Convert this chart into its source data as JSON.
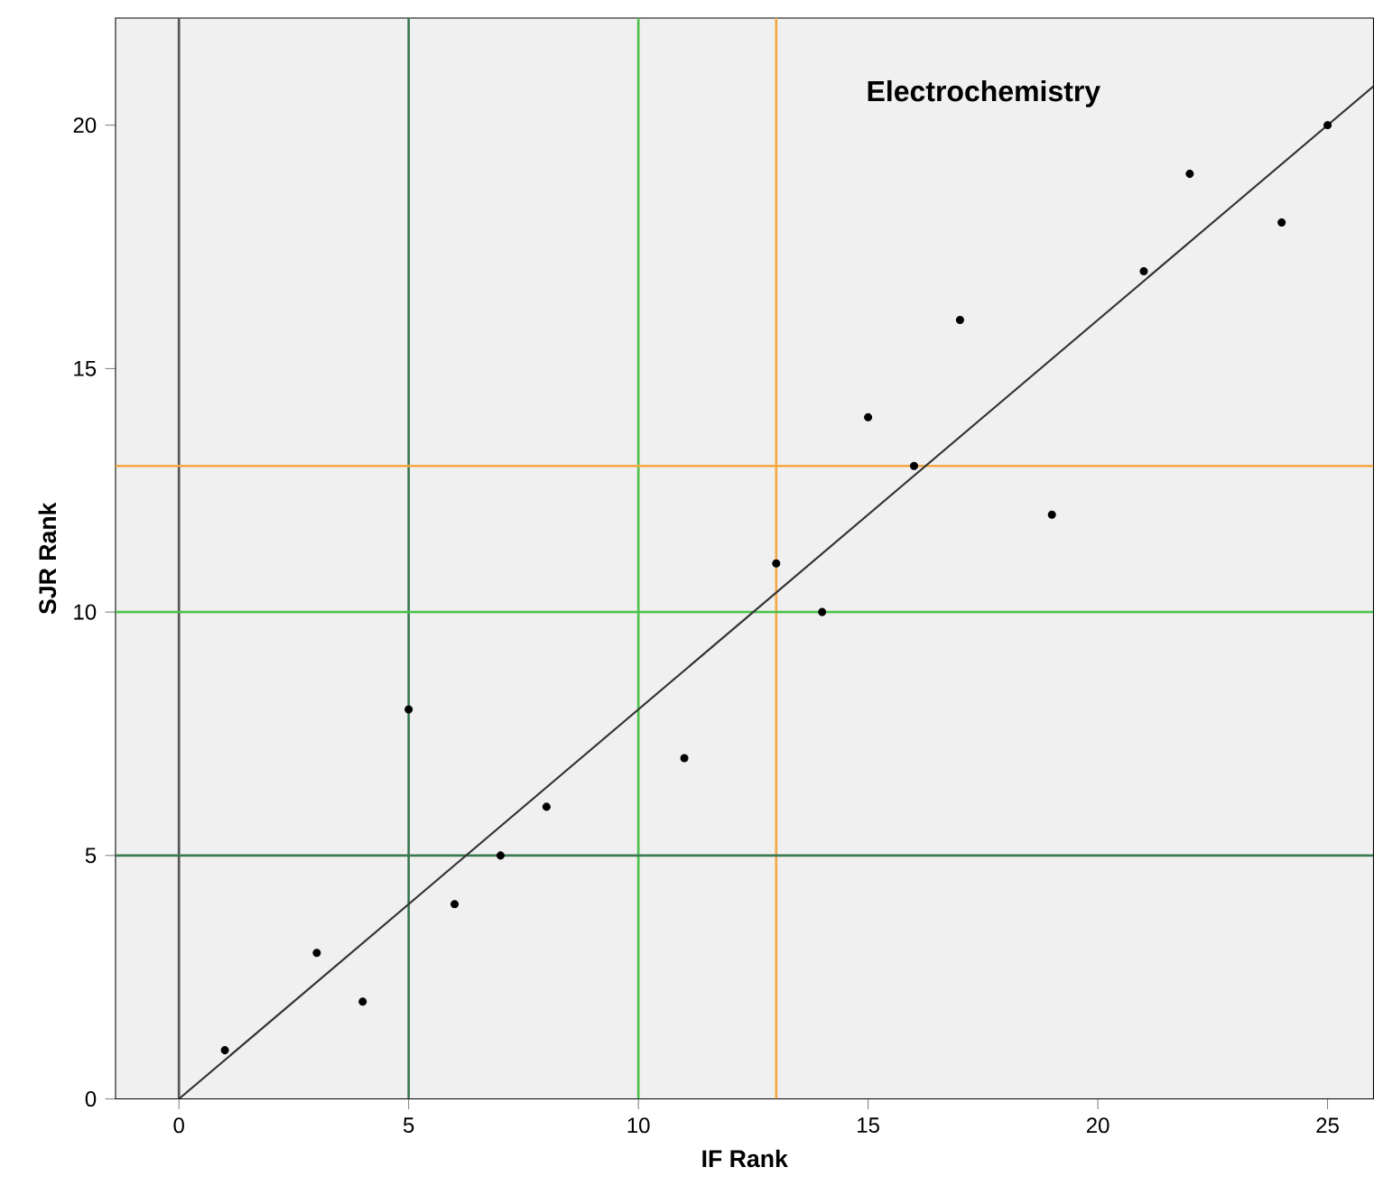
{
  "chart_data": {
    "type": "scatter",
    "xlabel": "IF Rank",
    "ylabel": "SJR Rank",
    "annotations": [
      "Electrochemistry"
    ],
    "xlim": [
      -1.38,
      26.0
    ],
    "ylim": [
      0,
      22.2
    ],
    "xticks": [
      0,
      5,
      10,
      15,
      20,
      25
    ],
    "yticks": [
      0,
      5,
      10,
      15,
      20
    ],
    "ref_lines": [
      {
        "axis": "x",
        "value": 0,
        "color": "#555555"
      },
      {
        "axis": "x",
        "value": 5,
        "color": "#3a7a50"
      },
      {
        "axis": "x",
        "value": 10,
        "color": "#4cc24c"
      },
      {
        "axis": "x",
        "value": 13,
        "color": "#f5a742"
      },
      {
        "axis": "y",
        "value": 5,
        "color": "#3a7a50"
      },
      {
        "axis": "y",
        "value": 10,
        "color": "#4cc24c"
      },
      {
        "axis": "y",
        "value": 13,
        "color": "#f5a742"
      }
    ],
    "series": [
      {
        "marker": "circle",
        "color": "#000000",
        "x": [
          1,
          3,
          4,
          5,
          6,
          7,
          8,
          11,
          13,
          14,
          15,
          16,
          17,
          19,
          21,
          22,
          24,
          25
        ],
        "values": [
          1,
          3,
          2,
          8,
          4,
          5,
          6,
          7,
          11,
          10,
          14,
          13,
          16,
          12,
          17,
          19,
          18,
          20
        ]
      },
      {
        "type": "line",
        "marker": "none",
        "color": "#333333",
        "x": [
          0,
          26.0
        ],
        "values": [
          0,
          20.8
        ]
      }
    ]
  }
}
